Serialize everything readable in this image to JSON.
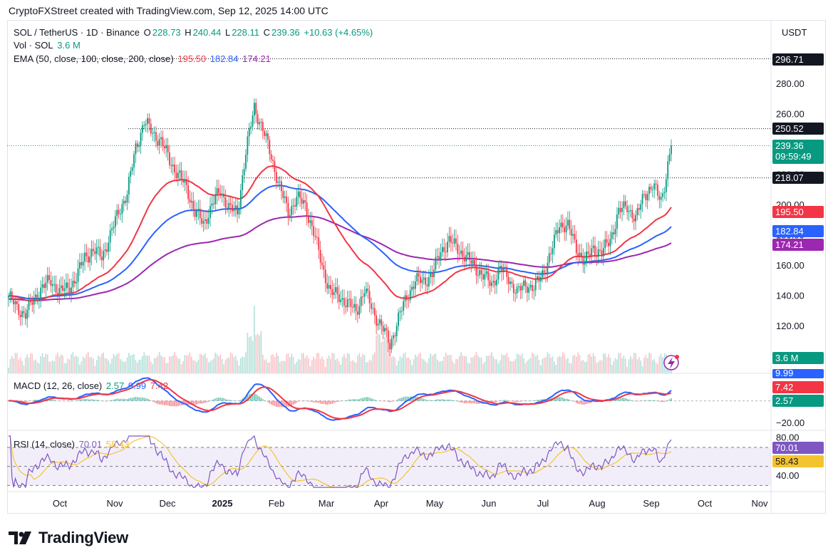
{
  "header": {
    "text": "CryptoFXStreet created with TradingView.com, Sep 12, 2025 14:00 UTC"
  },
  "legend": {
    "symbol": "SOL / TetherUS · 1D · Binance",
    "o_label": "O",
    "o": "228.73",
    "h_label": "H",
    "h": "240.44",
    "l_label": "L",
    "l": "228.11",
    "c_label": "C",
    "c": "239.36",
    "change": "+10.63 (+4.65%)",
    "vol_label": "Vol · SOL",
    "vol": "3.6 M",
    "ema_label": "EMA (50, close, 100, close, 200, close)",
    "ema50": "195.50",
    "ema100": "182.84",
    "ema200": "174.21",
    "macd_label": "MACD (12, 26, close)",
    "macd_hist": "2.57",
    "macd_line": "9.99",
    "macd_signal": "7.42",
    "rsi_label": "RSI (14, close)",
    "rsi": "70.01",
    "rsi_ma": "58.43"
  },
  "currency": "USDT",
  "price_boxes": {
    "high": "296.71",
    "r1": "250.52",
    "last": "239.36",
    "countdown": "09:59:49",
    "s1": "218.07",
    "ema50": "195.50",
    "ema100": "182.84",
    "ema200": "174.21",
    "vol": "3.6 M",
    "macd_line": "9.99",
    "macd_signal": "7.42",
    "macd_hist": "2.57",
    "rsi": "70.01",
    "rsi_ma": "58.43"
  },
  "colors": {
    "up": "#089981",
    "down": "#f23645",
    "ema50": "#f23645",
    "ema100": "#2962ff",
    "ema200": "#9c27b0",
    "macd": "#2962ff",
    "signal": "#f23645",
    "rsi": "#7e57c2",
    "rsi_ma": "#f4c430"
  },
  "brand": {
    "name": "TradingView",
    "icon": "tradingview-logo-icon"
  },
  "chart_data": {
    "type": "candlestick",
    "x_ticks": [
      "Oct",
      "Nov",
      "Dec",
      "2025",
      "Feb",
      "Mar",
      "Apr",
      "May",
      "Jun",
      "Jul",
      "Aug",
      "Sep",
      "Oct",
      "Nov"
    ],
    "y_ticks": [
      120,
      140,
      160,
      180,
      200,
      220,
      240,
      260,
      280
    ],
    "y_tick_labels": [
      "120.00",
      "140.00",
      "160.00",
      "180.00",
      "200.00",
      "220.00",
      "240.00",
      "260.00",
      "280.00"
    ],
    "ylim": [
      100,
      300
    ],
    "macd_ticks": [
      -20
    ],
    "macd_tick_labels": [
      "−20.00"
    ],
    "macd_ylim": [
      -25,
      22
    ],
    "rsi_ticks": [
      40,
      80
    ],
    "rsi_tick_labels": [
      "40.00",
      "80.00"
    ],
    "rsi_ylim": [
      25,
      85
    ],
    "rsi_band": [
      30,
      70
    ],
    "horizontal_levels": [
      296.71,
      250.52,
      218.07
    ],
    "price_anchors": [
      [
        0,
        140
      ],
      [
        5,
        132
      ],
      [
        10,
        128
      ],
      [
        15,
        138
      ],
      [
        20,
        146
      ],
      [
        25,
        150
      ],
      [
        30,
        143
      ],
      [
        35,
        145
      ],
      [
        40,
        152
      ],
      [
        45,
        166
      ],
      [
        50,
        170
      ],
      [
        55,
        166
      ],
      [
        60,
        180
      ],
      [
        65,
        196
      ],
      [
        70,
        208
      ],
      [
        75,
        238
      ],
      [
        80,
        255
      ],
      [
        85,
        248
      ],
      [
        90,
        242
      ],
      [
        95,
        230
      ],
      [
        100,
        220
      ],
      [
        105,
        212
      ],
      [
        110,
        195
      ],
      [
        115,
        188
      ],
      [
        120,
        200
      ],
      [
        125,
        210
      ],
      [
        130,
        198
      ],
      [
        135,
        195
      ],
      [
        140,
        235
      ],
      [
        145,
        265
      ],
      [
        150,
        250
      ],
      [
        155,
        232
      ],
      [
        160,
        212
      ],
      [
        165,
        195
      ],
      [
        170,
        205
      ],
      [
        175,
        200
      ],
      [
        180,
        182
      ],
      [
        185,
        160
      ],
      [
        190,
        142
      ],
      [
        195,
        140
      ],
      [
        200,
        135
      ],
      [
        205,
        130
      ],
      [
        210,
        144
      ],
      [
        215,
        130
      ],
      [
        220,
        120
      ],
      [
        225,
        108
      ],
      [
        230,
        125
      ],
      [
        235,
        140
      ],
      [
        240,
        150
      ],
      [
        245,
        150
      ],
      [
        250,
        154
      ],
      [
        255,
        170
      ],
      [
        260,
        176
      ],
      [
        265,
        172
      ],
      [
        270,
        165
      ],
      [
        275,
        160
      ],
      [
        280,
        153
      ],
      [
        285,
        148
      ],
      [
        290,
        158
      ],
      [
        295,
        152
      ],
      [
        300,
        142
      ],
      [
        305,
        148
      ],
      [
        310,
        145
      ],
      [
        315,
        155
      ],
      [
        320,
        168
      ],
      [
        325,
        188
      ],
      [
        330,
        186
      ],
      [
        335,
        172
      ],
      [
        340,
        162
      ],
      [
        345,
        172
      ],
      [
        350,
        168
      ],
      [
        355,
        178
      ],
      [
        360,
        195
      ],
      [
        365,
        200
      ],
      [
        370,
        190
      ],
      [
        375,
        208
      ],
      [
        380,
        212
      ],
      [
        385,
        204
      ],
      [
        388,
        219
      ],
      [
        391,
        239.36
      ]
    ],
    "volume_hint": "relative volume bars along bottom of main pane"
  }
}
